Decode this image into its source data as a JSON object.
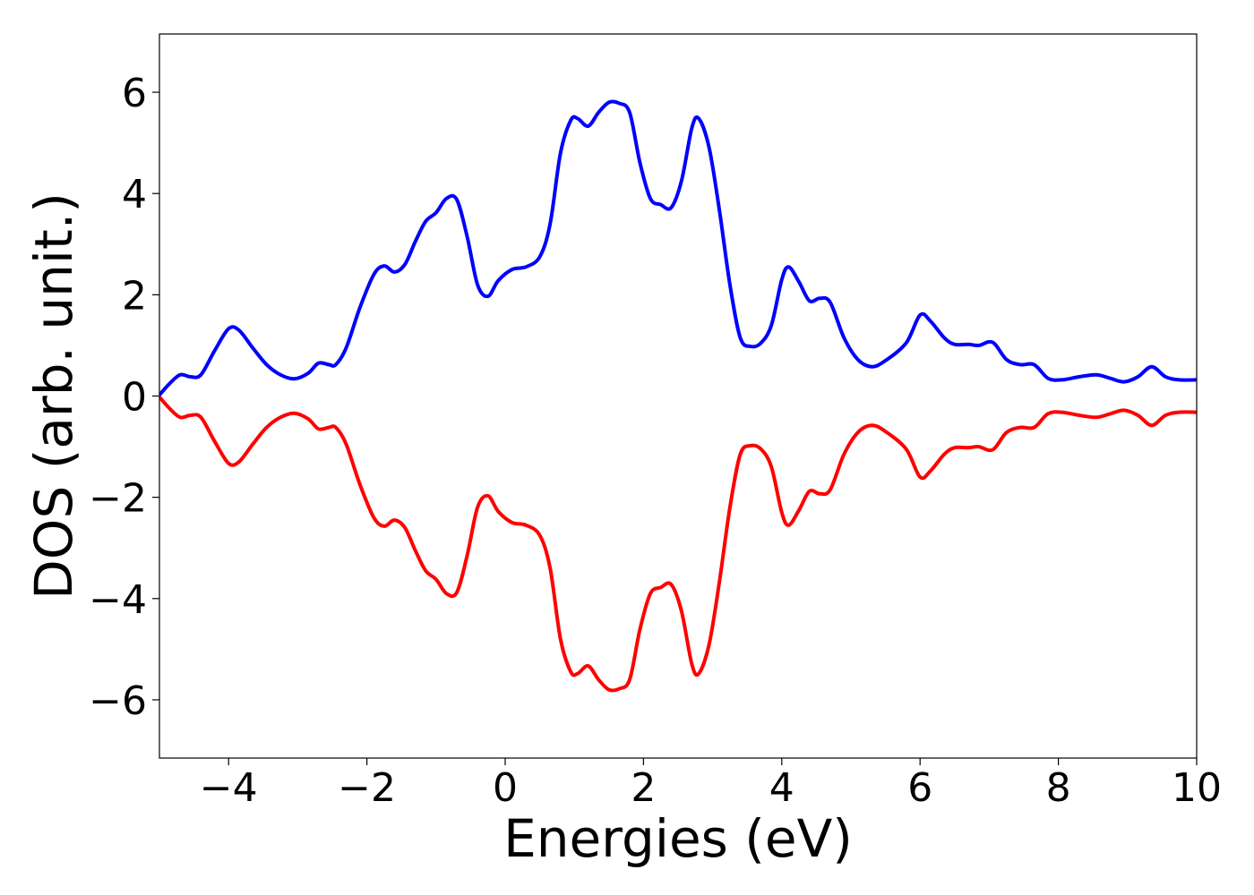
{
  "chart_data": {
    "type": "line",
    "title": "",
    "xlabel": "Energies (eV)",
    "ylabel": "DOS (arb. unit.)",
    "xlim": [
      -5,
      10
    ],
    "ylim": [
      -7.15,
      7.15
    ],
    "xticks": [
      -4,
      -2,
      0,
      2,
      4,
      6,
      8,
      10
    ],
    "yticks": [
      -6,
      -4,
      -2,
      0,
      2,
      4,
      6
    ],
    "xtick_labels": [
      "−4",
      "−2",
      "0",
      "2",
      "4",
      "6",
      "8",
      "10"
    ],
    "ytick_labels": [
      "−6",
      "−4",
      "−2",
      "0",
      "2",
      "4",
      "6"
    ],
    "grid": false,
    "legend": "none",
    "series": [
      {
        "color": "#0000ff",
        "points": [
          [
            -5.0,
            0.02
          ],
          [
            -4.85,
            0.25
          ],
          [
            -4.7,
            0.42
          ],
          [
            -4.55,
            0.38
          ],
          [
            -4.4,
            0.42
          ],
          [
            -4.2,
            0.9
          ],
          [
            -4.0,
            1.33
          ],
          [
            -3.85,
            1.3
          ],
          [
            -3.65,
            0.95
          ],
          [
            -3.45,
            0.62
          ],
          [
            -3.25,
            0.42
          ],
          [
            -3.05,
            0.34
          ],
          [
            -2.85,
            0.45
          ],
          [
            -2.7,
            0.65
          ],
          [
            -2.55,
            0.62
          ],
          [
            -2.45,
            0.62
          ],
          [
            -2.3,
            0.95
          ],
          [
            -2.1,
            1.75
          ],
          [
            -1.9,
            2.4
          ],
          [
            -1.75,
            2.57
          ],
          [
            -1.6,
            2.45
          ],
          [
            -1.45,
            2.6
          ],
          [
            -1.3,
            3.05
          ],
          [
            -1.15,
            3.45
          ],
          [
            -1.0,
            3.62
          ],
          [
            -0.85,
            3.9
          ],
          [
            -0.7,
            3.88
          ],
          [
            -0.55,
            3.15
          ],
          [
            -0.4,
            2.2
          ],
          [
            -0.25,
            1.97
          ],
          [
            -0.1,
            2.28
          ],
          [
            0.1,
            2.5
          ],
          [
            0.3,
            2.55
          ],
          [
            0.5,
            2.75
          ],
          [
            0.65,
            3.4
          ],
          [
            0.8,
            4.8
          ],
          [
            0.95,
            5.45
          ],
          [
            1.05,
            5.48
          ],
          [
            1.2,
            5.33
          ],
          [
            1.35,
            5.6
          ],
          [
            1.5,
            5.8
          ],
          [
            1.65,
            5.78
          ],
          [
            1.8,
            5.6
          ],
          [
            1.95,
            4.6
          ],
          [
            2.1,
            3.9
          ],
          [
            2.25,
            3.78
          ],
          [
            2.4,
            3.72
          ],
          [
            2.55,
            4.25
          ],
          [
            2.7,
            5.3
          ],
          [
            2.8,
            5.48
          ],
          [
            2.95,
            4.9
          ],
          [
            3.1,
            3.65
          ],
          [
            3.25,
            2.2
          ],
          [
            3.4,
            1.15
          ],
          [
            3.55,
            0.98
          ],
          [
            3.7,
            1.05
          ],
          [
            3.85,
            1.4
          ],
          [
            4.0,
            2.3
          ],
          [
            4.1,
            2.55
          ],
          [
            4.25,
            2.25
          ],
          [
            4.4,
            1.88
          ],
          [
            4.55,
            1.93
          ],
          [
            4.7,
            1.85
          ],
          [
            4.9,
            1.15
          ],
          [
            5.1,
            0.72
          ],
          [
            5.3,
            0.58
          ],
          [
            5.5,
            0.7
          ],
          [
            5.8,
            1.05
          ],
          [
            6.0,
            1.6
          ],
          [
            6.15,
            1.48
          ],
          [
            6.35,
            1.15
          ],
          [
            6.5,
            1.02
          ],
          [
            6.7,
            1.02
          ],
          [
            6.85,
            1.0
          ],
          [
            7.05,
            1.06
          ],
          [
            7.25,
            0.72
          ],
          [
            7.45,
            0.62
          ],
          [
            7.65,
            0.62
          ],
          [
            7.85,
            0.35
          ],
          [
            8.05,
            0.32
          ],
          [
            8.3,
            0.38
          ],
          [
            8.55,
            0.42
          ],
          [
            8.75,
            0.35
          ],
          [
            8.95,
            0.28
          ],
          [
            9.15,
            0.38
          ],
          [
            9.35,
            0.58
          ],
          [
            9.55,
            0.38
          ],
          [
            9.75,
            0.32
          ],
          [
            10.0,
            0.32
          ]
        ]
      },
      {
        "color": "#ff0000",
        "points": [
          [
            -5.0,
            -0.02
          ],
          [
            -4.85,
            -0.25
          ],
          [
            -4.7,
            -0.42
          ],
          [
            -4.55,
            -0.38
          ],
          [
            -4.4,
            -0.42
          ],
          [
            -4.2,
            -0.9
          ],
          [
            -4.0,
            -1.33
          ],
          [
            -3.85,
            -1.3
          ],
          [
            -3.65,
            -0.95
          ],
          [
            -3.45,
            -0.62
          ],
          [
            -3.25,
            -0.42
          ],
          [
            -3.05,
            -0.34
          ],
          [
            -2.85,
            -0.45
          ],
          [
            -2.7,
            -0.65
          ],
          [
            -2.55,
            -0.62
          ],
          [
            -2.45,
            -0.62
          ],
          [
            -2.3,
            -0.95
          ],
          [
            -2.1,
            -1.75
          ],
          [
            -1.9,
            -2.4
          ],
          [
            -1.75,
            -2.57
          ],
          [
            -1.6,
            -2.45
          ],
          [
            -1.45,
            -2.6
          ],
          [
            -1.3,
            -3.05
          ],
          [
            -1.15,
            -3.45
          ],
          [
            -1.0,
            -3.62
          ],
          [
            -0.85,
            -3.9
          ],
          [
            -0.7,
            -3.88
          ],
          [
            -0.55,
            -3.15
          ],
          [
            -0.4,
            -2.2
          ],
          [
            -0.25,
            -1.97
          ],
          [
            -0.1,
            -2.28
          ],
          [
            0.1,
            -2.5
          ],
          [
            0.3,
            -2.55
          ],
          [
            0.5,
            -2.75
          ],
          [
            0.65,
            -3.4
          ],
          [
            0.8,
            -4.8
          ],
          [
            0.95,
            -5.45
          ],
          [
            1.05,
            -5.48
          ],
          [
            1.2,
            -5.33
          ],
          [
            1.35,
            -5.6
          ],
          [
            1.5,
            -5.8
          ],
          [
            1.65,
            -5.78
          ],
          [
            1.8,
            -5.6
          ],
          [
            1.95,
            -4.6
          ],
          [
            2.1,
            -3.9
          ],
          [
            2.25,
            -3.78
          ],
          [
            2.4,
            -3.72
          ],
          [
            2.55,
            -4.25
          ],
          [
            2.7,
            -5.3
          ],
          [
            2.8,
            -5.48
          ],
          [
            2.95,
            -4.9
          ],
          [
            3.1,
            -3.65
          ],
          [
            3.25,
            -2.2
          ],
          [
            3.4,
            -1.15
          ],
          [
            3.55,
            -0.98
          ],
          [
            3.7,
            -1.05
          ],
          [
            3.85,
            -1.4
          ],
          [
            4.0,
            -2.3
          ],
          [
            4.1,
            -2.55
          ],
          [
            4.25,
            -2.25
          ],
          [
            4.4,
            -1.88
          ],
          [
            4.55,
            -1.93
          ],
          [
            4.7,
            -1.85
          ],
          [
            4.9,
            -1.15
          ],
          [
            5.1,
            -0.72
          ],
          [
            5.3,
            -0.58
          ],
          [
            5.5,
            -0.7
          ],
          [
            5.8,
            -1.05
          ],
          [
            6.0,
            -1.6
          ],
          [
            6.15,
            -1.48
          ],
          [
            6.35,
            -1.15
          ],
          [
            6.5,
            -1.02
          ],
          [
            6.7,
            -1.02
          ],
          [
            6.85,
            -1.0
          ],
          [
            7.05,
            -1.06
          ],
          [
            7.25,
            -0.72
          ],
          [
            7.45,
            -0.62
          ],
          [
            7.65,
            -0.62
          ],
          [
            7.85,
            -0.35
          ],
          [
            8.05,
            -0.32
          ],
          [
            8.3,
            -0.38
          ],
          [
            8.55,
            -0.42
          ],
          [
            8.75,
            -0.35
          ],
          [
            8.95,
            -0.28
          ],
          [
            9.15,
            -0.38
          ],
          [
            9.35,
            -0.58
          ],
          [
            9.55,
            -0.38
          ],
          [
            9.75,
            -0.32
          ],
          [
            10.0,
            -0.32
          ]
        ]
      }
    ]
  }
}
